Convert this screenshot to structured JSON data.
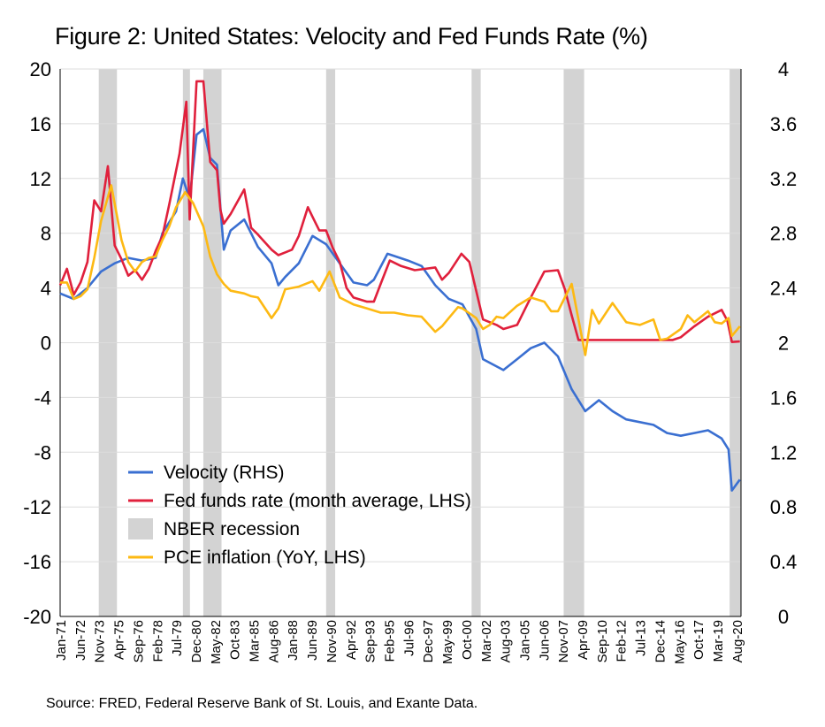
{
  "chart_data": {
    "type": "line",
    "title": "Figure 2: United States: Velocity and Fed Funds Rate (%)",
    "source": "Source: FRED, Federal Reserve Bank of St. Louis, and Exante Data.",
    "x_range": [
      "1971-01",
      "2020-12"
    ],
    "y_left": {
      "range": [
        -20,
        20
      ],
      "ticks": [
        "20",
        "16",
        "12",
        "8",
        "4",
        "0",
        "-4",
        "-8",
        "-12",
        "-16",
        "-20"
      ]
    },
    "y_right": {
      "range": [
        0,
        4
      ],
      "ticks": [
        "4",
        "3.6",
        "3.2",
        "2.8",
        "2.4",
        "2",
        "1.6",
        "1.2",
        "0.8",
        "0.4",
        "0"
      ]
    },
    "x_ticks": [
      "Jan-71",
      "Jun-72",
      "Nov-73",
      "Apr-75",
      "Sep-76",
      "Feb-78",
      "Jul-79",
      "Dec-80",
      "May-82",
      "Oct-83",
      "Mar-85",
      "Aug-86",
      "Jan-88",
      "Jun-89",
      "Nov-90",
      "Apr-92",
      "Sep-93",
      "Feb-95",
      "Jul-96",
      "Dec-97",
      "May-99",
      "Oct-00",
      "Mar-02",
      "Aug-03",
      "Jan-05",
      "Jun-06",
      "Nov-07",
      "Apr-09",
      "Sep-10",
      "Feb-12",
      "Jul-13",
      "Dec-14",
      "May-16",
      "Oct-17",
      "Mar-19",
      "Aug-20"
    ],
    "grid": true,
    "legend_placement": "bottom-left",
    "recessions": [
      [
        "1973-11",
        "1975-03"
      ],
      [
        "1980-01",
        "1980-07"
      ],
      [
        "1981-07",
        "1982-11"
      ],
      [
        "1990-07",
        "1991-03"
      ],
      [
        "2001-03",
        "2001-11"
      ],
      [
        "2007-12",
        "2009-06"
      ],
      [
        "2020-02",
        "2020-12"
      ]
    ],
    "recession_label": "NBER recession",
    "recession_color": "#d3d3d3",
    "series": [
      {
        "name": "Velocity (RHS)",
        "axis": "right",
        "color": "#3a6fd1",
        "points": [
          [
            "1971-01",
            2.36
          ],
          [
            "1972-01",
            2.32
          ],
          [
            "1973-01",
            2.4
          ],
          [
            "1974-01",
            2.52
          ],
          [
            "1975-01",
            2.58
          ],
          [
            "1976-01",
            2.62
          ],
          [
            "1977-01",
            2.6
          ],
          [
            "1978-01",
            2.62
          ],
          [
            "1978-07",
            2.8
          ],
          [
            "1979-07",
            2.96
          ],
          [
            "1980-01",
            3.2
          ],
          [
            "1980-07",
            3.05
          ],
          [
            "1981-01",
            3.52
          ],
          [
            "1981-07",
            3.56
          ],
          [
            "1982-01",
            3.35
          ],
          [
            "1982-07",
            3.3
          ],
          [
            "1983-01",
            2.68
          ],
          [
            "1983-07",
            2.82
          ],
          [
            "1984-07",
            2.9
          ],
          [
            "1985-07",
            2.7
          ],
          [
            "1986-07",
            2.58
          ],
          [
            "1987-01",
            2.42
          ],
          [
            "1987-07",
            2.48
          ],
          [
            "1988-07",
            2.58
          ],
          [
            "1989-07",
            2.78
          ],
          [
            "1990-07",
            2.72
          ],
          [
            "1991-07",
            2.58
          ],
          [
            "1992-07",
            2.44
          ],
          [
            "1993-07",
            2.42
          ],
          [
            "1994-01",
            2.46
          ],
          [
            "1995-01",
            2.65
          ],
          [
            "1996-07",
            2.6
          ],
          [
            "1997-07",
            2.56
          ],
          [
            "1998-07",
            2.42
          ],
          [
            "1999-07",
            2.32
          ],
          [
            "2000-07",
            2.28
          ],
          [
            "2001-07",
            2.1
          ],
          [
            "2002-01",
            1.88
          ],
          [
            "2003-07",
            1.8
          ],
          [
            "2004-07",
            1.88
          ],
          [
            "2005-07",
            1.96
          ],
          [
            "2006-07",
            2.0
          ],
          [
            "2007-07",
            1.9
          ],
          [
            "2008-07",
            1.66
          ],
          [
            "2009-07",
            1.5
          ],
          [
            "2010-07",
            1.58
          ],
          [
            "2011-07",
            1.5
          ],
          [
            "2012-07",
            1.44
          ],
          [
            "2014-07",
            1.4
          ],
          [
            "2015-07",
            1.34
          ],
          [
            "2016-07",
            1.32
          ],
          [
            "2017-07",
            1.34
          ],
          [
            "2018-07",
            1.36
          ],
          [
            "2019-07",
            1.3
          ],
          [
            "2020-01",
            1.22
          ],
          [
            "2020-04",
            0.92
          ],
          [
            "2020-11",
            1.0
          ]
        ]
      },
      {
        "name": "Fed funds rate (month average, LHS)",
        "axis": "left",
        "color": "#e0203c",
        "points": [
          [
            "1971-01",
            4.2
          ],
          [
            "1971-07",
            5.4
          ],
          [
            "1972-01",
            3.5
          ],
          [
            "1972-07",
            4.4
          ],
          [
            "1973-01",
            5.9
          ],
          [
            "1973-07",
            10.4
          ],
          [
            "1974-01",
            9.6
          ],
          [
            "1974-07",
            12.9
          ],
          [
            "1975-01",
            7.1
          ],
          [
            "1975-07",
            6.1
          ],
          [
            "1976-01",
            4.9
          ],
          [
            "1976-07",
            5.3
          ],
          [
            "1977-01",
            4.6
          ],
          [
            "1977-07",
            5.4
          ],
          [
            "1978-01",
            6.7
          ],
          [
            "1978-07",
            7.8
          ],
          [
            "1979-01",
            10.1
          ],
          [
            "1979-10",
            13.8
          ],
          [
            "1980-04",
            17.6
          ],
          [
            "1980-07",
            9.0
          ],
          [
            "1981-01",
            19.1
          ],
          [
            "1981-07",
            19.1
          ],
          [
            "1982-01",
            13.2
          ],
          [
            "1982-07",
            12.6
          ],
          [
            "1982-10",
            9.7
          ],
          [
            "1983-01",
            8.7
          ],
          [
            "1983-07",
            9.4
          ],
          [
            "1984-07",
            11.2
          ],
          [
            "1985-01",
            8.4
          ],
          [
            "1985-07",
            7.9
          ],
          [
            "1986-07",
            6.8
          ],
          [
            "1987-01",
            6.4
          ],
          [
            "1987-07",
            6.6
          ],
          [
            "1988-01",
            6.8
          ],
          [
            "1988-07",
            7.8
          ],
          [
            "1989-03",
            9.9
          ],
          [
            "1989-07",
            9.2
          ],
          [
            "1990-01",
            8.2
          ],
          [
            "1990-07",
            8.2
          ],
          [
            "1991-01",
            6.9
          ],
          [
            "1991-07",
            5.9
          ],
          [
            "1992-01",
            4.0
          ],
          [
            "1992-07",
            3.3
          ],
          [
            "1993-07",
            3.0
          ],
          [
            "1994-01",
            3.0
          ],
          [
            "1994-07",
            4.3
          ],
          [
            "1995-03",
            6.0
          ],
          [
            "1996-01",
            5.6
          ],
          [
            "1997-01",
            5.3
          ],
          [
            "1998-07",
            5.5
          ],
          [
            "1999-01",
            4.6
          ],
          [
            "1999-07",
            5.1
          ],
          [
            "2000-06",
            6.5
          ],
          [
            "2001-01",
            5.9
          ],
          [
            "2001-07",
            3.8
          ],
          [
            "2002-01",
            1.7
          ],
          [
            "2003-01",
            1.3
          ],
          [
            "2003-07",
            1.0
          ],
          [
            "2004-07",
            1.3
          ],
          [
            "2005-01",
            2.3
          ],
          [
            "2005-07",
            3.3
          ],
          [
            "2006-07",
            5.2
          ],
          [
            "2007-07",
            5.3
          ],
          [
            "2008-01",
            3.9
          ],
          [
            "2008-07",
            2.0
          ],
          [
            "2009-01",
            0.2
          ],
          [
            "2010-07",
            0.2
          ],
          [
            "2015-12",
            0.2
          ],
          [
            "2016-07",
            0.4
          ],
          [
            "2017-07",
            1.2
          ],
          [
            "2018-07",
            1.9
          ],
          [
            "2019-07",
            2.4
          ],
          [
            "2019-12",
            1.6
          ],
          [
            "2020-04",
            0.05
          ],
          [
            "2020-11",
            0.09
          ]
        ]
      },
      {
        "name": "PCE inflation (YoY, LHS)",
        "axis": "left",
        "color": "#fdb913",
        "points": [
          [
            "1971-01",
            4.4
          ],
          [
            "1971-07",
            4.4
          ],
          [
            "1972-01",
            3.2
          ],
          [
            "1972-07",
            3.4
          ],
          [
            "1973-01",
            3.9
          ],
          [
            "1973-07",
            6.2
          ],
          [
            "1974-01",
            8.9
          ],
          [
            "1974-10",
            11.5
          ],
          [
            "1975-07",
            7.5
          ],
          [
            "1976-01",
            5.9
          ],
          [
            "1976-07",
            5.2
          ],
          [
            "1977-01",
            5.9
          ],
          [
            "1977-07",
            6.2
          ],
          [
            "1978-01",
            6.3
          ],
          [
            "1978-07",
            7.5
          ],
          [
            "1979-01",
            8.5
          ],
          [
            "1979-07",
            9.9
          ],
          [
            "1980-03",
            11.0
          ],
          [
            "1980-10",
            10.2
          ],
          [
            "1981-07",
            8.5
          ],
          [
            "1982-01",
            6.3
          ],
          [
            "1982-07",
            5.0
          ],
          [
            "1983-01",
            4.3
          ],
          [
            "1983-07",
            3.8
          ],
          [
            "1984-07",
            3.6
          ],
          [
            "1985-01",
            3.4
          ],
          [
            "1985-07",
            3.3
          ],
          [
            "1986-07",
            1.8
          ],
          [
            "1987-01",
            2.5
          ],
          [
            "1987-07",
            3.9
          ],
          [
            "1988-07",
            4.1
          ],
          [
            "1989-07",
            4.5
          ],
          [
            "1990-01",
            3.8
          ],
          [
            "1990-10",
            5.2
          ],
          [
            "1991-07",
            3.3
          ],
          [
            "1992-07",
            2.8
          ],
          [
            "1993-07",
            2.5
          ],
          [
            "1994-07",
            2.2
          ],
          [
            "1995-07",
            2.2
          ],
          [
            "1996-07",
            2.0
          ],
          [
            "1997-07",
            1.9
          ],
          [
            "1998-07",
            0.8
          ],
          [
            "1999-01",
            1.2
          ],
          [
            "1999-07",
            1.8
          ],
          [
            "2000-03",
            2.6
          ],
          [
            "2000-07",
            2.5
          ],
          [
            "2001-07",
            1.8
          ],
          [
            "2002-01",
            1.0
          ],
          [
            "2002-07",
            1.3
          ],
          [
            "2003-01",
            1.9
          ],
          [
            "2003-07",
            1.8
          ],
          [
            "2004-07",
            2.7
          ],
          [
            "2005-07",
            3.3
          ],
          [
            "2006-07",
            3.0
          ],
          [
            "2007-01",
            2.3
          ],
          [
            "2007-07",
            2.3
          ],
          [
            "2008-07",
            4.3
          ],
          [
            "2009-07",
            -0.9
          ],
          [
            "2010-01",
            2.4
          ],
          [
            "2010-07",
            1.4
          ],
          [
            "2011-07",
            2.9
          ],
          [
            "2012-07",
            1.5
          ],
          [
            "2013-07",
            1.3
          ],
          [
            "2014-07",
            1.7
          ],
          [
            "2015-01",
            0.2
          ],
          [
            "2015-07",
            0.3
          ],
          [
            "2016-07",
            1.0
          ],
          [
            "2017-01",
            2.0
          ],
          [
            "2017-07",
            1.5
          ],
          [
            "2018-07",
            2.3
          ],
          [
            "2019-01",
            1.5
          ],
          [
            "2019-07",
            1.4
          ],
          [
            "2020-01",
            1.8
          ],
          [
            "2020-04",
            0.5
          ],
          [
            "2020-11",
            1.2
          ]
        ]
      }
    ]
  }
}
